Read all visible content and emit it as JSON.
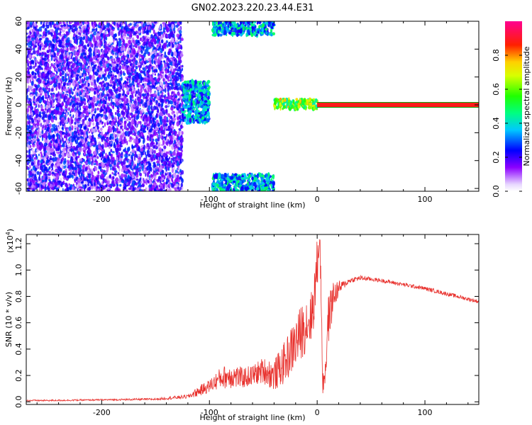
{
  "title": "GN02.2023.220.23.44.E31",
  "colors": {
    "snr_line": "#e8302c",
    "band_line": "#ff1a1a",
    "band_edge": "#00a000",
    "axis": "#000000"
  },
  "chart_data": [
    {
      "type": "heatmap",
      "title": "GN02.2023.220.23.44.E31",
      "xlabel": "Height of straight line (km)",
      "ylabel": "Frequency (Hz)",
      "xlim": [
        -270,
        150
      ],
      "ylim": [
        -62,
        60
      ],
      "x_ticks": [
        -200,
        -100,
        0,
        100
      ],
      "x_tick_labels": [
        "-200",
        "-100",
        "0",
        "100"
      ],
      "y_ticks": [
        -60,
        -40,
        -20,
        0,
        20,
        40,
        60
      ],
      "y_tick_labels": [
        "-60",
        "-40",
        "-20",
        "0",
        "20",
        "40",
        "60"
      ],
      "colorbar": {
        "label": "Normalized spectral amplitude",
        "range": [
          0,
          1
        ],
        "ticks": [
          0.0,
          0.2,
          0.4,
          0.6,
          0.8
        ],
        "tick_labels": [
          "0.0",
          "0.2",
          "0.4",
          "0.6",
          "0.8"
        ],
        "colormap": "rainbow (white-purple-blue-cyan-green-yellow-red-magenta)"
      },
      "regions": [
        {
          "x_range": [
            -270,
            -125
          ],
          "f_range": [
            -62,
            60
          ],
          "amplitude": "low (0.05-0.3) scattered speckle"
        },
        {
          "x_range": [
            -125,
            -100
          ],
          "f_range": [
            -13,
            17
          ],
          "amplitude": "medium (0.2-0.5)"
        },
        {
          "x_range": [
            -97,
            -40
          ],
          "f_range": [
            50,
            60
          ],
          "amplitude": "medium (0.2-0.5) aliased band"
        },
        {
          "x_range": [
            -97,
            -40
          ],
          "f_range": [
            -62,
            -50
          ],
          "amplitude": "medium (0.2-0.5) aliased band"
        },
        {
          "x_range": [
            -40,
            0
          ],
          "f_range": [
            -3,
            4
          ],
          "amplitude": "high (0.4-0.8)"
        },
        {
          "x_range": [
            0,
            150
          ],
          "f_range": [
            -1.5,
            1.5
          ],
          "amplitude": "1.0 peak line at 0 Hz"
        }
      ]
    },
    {
      "type": "line",
      "xlabel": "Height of straight line (km)",
      "ylabel": "SNR (10 * v/v)",
      "y_multiplier": "(x10",
      "y_multiplier_exp": "4",
      "y_multiplier_close": ")",
      "xlim": [
        -270,
        150
      ],
      "ylim": [
        -0.02,
        1.27
      ],
      "x_ticks": [
        -200,
        -100,
        0,
        100
      ],
      "x_tick_labels": [
        "-200",
        "-100",
        "0",
        "100"
      ],
      "y_ticks": [
        0.0,
        0.2,
        0.4,
        0.6,
        0.8,
        1.0,
        1.2
      ],
      "y_tick_labels": [
        "0.0",
        "0.2",
        "0.4",
        "0.6",
        "0.8",
        "1.0",
        "1.2"
      ],
      "series": [
        {
          "x": [
            -270,
            -250,
            -200,
            -150,
            -120,
            -110,
            -100,
            -90,
            -80,
            -70,
            -60,
            -50,
            -40,
            -30,
            -20,
            -10,
            -5,
            0,
            2,
            4,
            5,
            8,
            10,
            15,
            20,
            25,
            30,
            40,
            50,
            60,
            80,
            100,
            120,
            150
          ],
          "y": [
            0.01,
            0.01,
            0.015,
            0.02,
            0.04,
            0.08,
            0.12,
            0.18,
            0.2,
            0.18,
            0.2,
            0.24,
            0.2,
            0.3,
            0.45,
            0.6,
            0.65,
            1.0,
            1.27,
            0.8,
            0.1,
            0.3,
            0.6,
            0.8,
            0.86,
            0.89,
            0.92,
            0.94,
            0.93,
            0.92,
            0.89,
            0.86,
            0.82,
            0.76
          ],
          "noise": [
            0.006,
            0.006,
            0.006,
            0.008,
            0.015,
            0.04,
            0.05,
            0.08,
            0.1,
            0.08,
            0.08,
            0.1,
            0.12,
            0.16,
            0.2,
            0.22,
            0.2,
            0.25,
            0.1,
            0.2,
            0.05,
            0.2,
            0.2,
            0.12,
            0.06,
            0.03,
            0.02,
            0.02,
            0.015,
            0.015,
            0.015,
            0.015,
            0.015,
            0.015
          ]
        }
      ]
    }
  ]
}
